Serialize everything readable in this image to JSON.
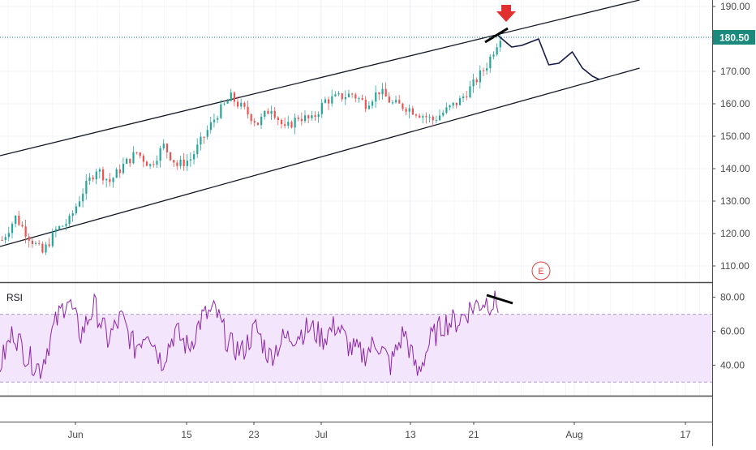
{
  "chart_data": {
    "type": "candlestick",
    "price_pane": {
      "y_ticks": [
        "110.00",
        "120.00",
        "130.00",
        "140.00",
        "150.00",
        "160.00",
        "170.00",
        "180.00",
        "190.00"
      ],
      "y_tick_values": [
        110,
        120,
        130,
        140,
        150,
        160,
        170,
        180,
        190
      ],
      "ylim": [
        105,
        192
      ],
      "last_price": 180.5,
      "last_price_label": "180.50",
      "colors": {
        "up": "#26a69a",
        "down": "#ef5350",
        "trendline": "#131722",
        "projection": "#151a47",
        "last_price_line": "#0a7a6a",
        "badge": "#1b8a7c",
        "arrow": "#e03030"
      },
      "channel_upper": {
        "from": {
          "bar": 0,
          "price": 144
        },
        "to": {
          "bar": 190,
          "price": 192
        }
      },
      "channel_lower": {
        "from": {
          "bar": 0,
          "price": 116
        },
        "to": {
          "bar": 190,
          "price": 171
        }
      },
      "marker_label": "E",
      "arrow": "down-arrow-icon"
    },
    "rsi_pane": {
      "label": "RSI",
      "y_ticks": [
        "40.00",
        "60.00",
        "80.00"
      ],
      "y_tick_values": [
        40,
        60,
        80
      ],
      "ylim": [
        22,
        88
      ],
      "band": [
        30,
        70
      ],
      "colors": {
        "line": "#8e24aa",
        "band_fill": "#f3e5fc",
        "divergence": "#131722"
      }
    },
    "x_axis": {
      "ticks": [
        "Jun",
        "15",
        "23",
        "Jul",
        "13",
        "21",
        "Aug",
        "17"
      ]
    },
    "price_keypoints": [
      [
        0,
        118
      ],
      [
        4,
        125
      ],
      [
        8,
        119
      ],
      [
        12,
        114
      ],
      [
        16,
        121
      ],
      [
        20,
        124
      ],
      [
        24,
        133
      ],
      [
        28,
        140
      ],
      [
        32,
        136
      ],
      [
        36,
        141
      ],
      [
        40,
        145
      ],
      [
        44,
        141
      ],
      [
        48,
        147
      ],
      [
        52,
        141
      ],
      [
        56,
        143
      ],
      [
        60,
        150
      ],
      [
        64,
        157
      ],
      [
        68,
        162
      ],
      [
        72,
        158
      ],
      [
        76,
        154
      ],
      [
        80,
        159
      ],
      [
        84,
        152
      ],
      [
        88,
        156
      ],
      [
        92,
        155
      ],
      [
        96,
        161
      ],
      [
        100,
        162
      ],
      [
        104,
        163
      ],
      [
        108,
        160
      ],
      [
        112,
        164
      ],
      [
        116,
        160
      ],
      [
        120,
        159
      ],
      [
        124,
        157
      ],
      [
        128,
        155
      ],
      [
        132,
        158
      ],
      [
        136,
        161
      ],
      [
        140,
        166
      ],
      [
        144,
        172
      ],
      [
        148,
        181
      ]
    ],
    "rsi_keypoints": [
      [
        0,
        40
      ],
      [
        4,
        60
      ],
      [
        8,
        45
      ],
      [
        12,
        38
      ],
      [
        16,
        62
      ],
      [
        20,
        80
      ],
      [
        24,
        58
      ],
      [
        28,
        75
      ],
      [
        32,
        55
      ],
      [
        36,
        68
      ],
      [
        40,
        50
      ],
      [
        44,
        62
      ],
      [
        48,
        42
      ],
      [
        52,
        60
      ],
      [
        56,
        50
      ],
      [
        60,
        68
      ],
      [
        64,
        72
      ],
      [
        68,
        52
      ],
      [
        72,
        48
      ],
      [
        76,
        62
      ],
      [
        80,
        45
      ],
      [
        84,
        55
      ],
      [
        88,
        58
      ],
      [
        92,
        62
      ],
      [
        96,
        56
      ],
      [
        100,
        64
      ],
      [
        104,
        50
      ],
      [
        108,
        46
      ],
      [
        112,
        54
      ],
      [
        116,
        40
      ],
      [
        120,
        60
      ],
      [
        124,
        35
      ],
      [
        128,
        55
      ],
      [
        132,
        65
      ],
      [
        136,
        66
      ],
      [
        140,
        74
      ],
      [
        144,
        78
      ],
      [
        148,
        76
      ]
    ]
  }
}
